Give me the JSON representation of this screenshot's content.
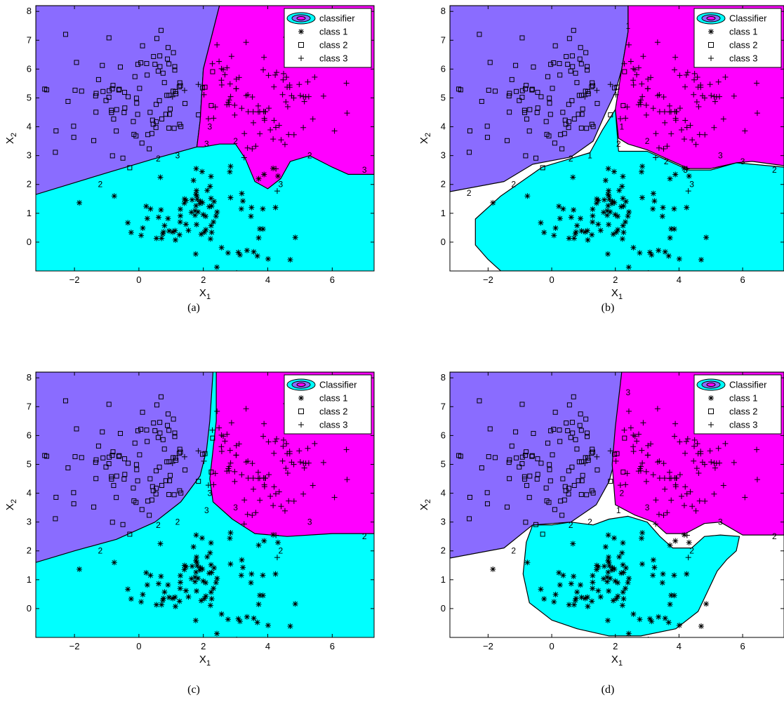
{
  "colors": {
    "class1_region": "#00ffff",
    "class2_region": "#8a6cff",
    "class3_region": "#ff00ff",
    "unclassified": "#ffffff",
    "markers": "#000000"
  },
  "chart_data": [
    {
      "type": "scatter",
      "caption": "(a)",
      "xlabel": "X_1",
      "ylabel": "X_2",
      "xlim": [
        -3.2,
        7.3
      ],
      "ylim": [
        -1,
        8.2
      ],
      "xticks": [
        -2,
        0,
        2,
        4,
        6
      ],
      "yticks": [
        0,
        1,
        2,
        3,
        4,
        5,
        6,
        7,
        8
      ],
      "legend": {
        "position": "top-right",
        "entries": [
          "classifier",
          "class 1",
          "class 2",
          "class 3"
        ]
      },
      "regions": "classifier decision regions: class 2 upper-left, class 3 upper-right, class 1 bottom",
      "contour_labels": [
        "2",
        "2",
        "3",
        "3",
        "2",
        "3",
        "2",
        "3",
        "3"
      ],
      "series": [
        {
          "name": "class 1",
          "marker": "*",
          "center": [
            2.0,
            1.0
          ],
          "spread": [
            1.1,
            1.0
          ],
          "n": 100
        },
        {
          "name": "class 2",
          "marker": "square",
          "center": [
            0.0,
            5.0
          ],
          "spread": [
            1.2,
            1.0
          ],
          "n": 100
        },
        {
          "name": "class 3",
          "marker": "+",
          "center": [
            4.0,
            5.0
          ],
          "spread": [
            1.1,
            1.0
          ],
          "n": 100
        }
      ]
    },
    {
      "type": "scatter",
      "caption": "(b)",
      "xlabel": "X_1",
      "ylabel": "X_2",
      "xlim": [
        -3.2,
        7.3
      ],
      "ylim": [
        -1,
        8.2
      ],
      "xticks": [
        -2,
        0,
        2,
        4,
        6
      ],
      "yticks": [
        0,
        1,
        2,
        3,
        4,
        5,
        6,
        7,
        8
      ],
      "legend": {
        "position": "top-right",
        "entries": [
          "Classifier",
          "class 1",
          "class 2",
          "class 3"
        ]
      },
      "regions": "regions with unclassified white gaps between classes",
      "contour_labels": [
        "2",
        "2",
        "1",
        "2",
        "2",
        "3",
        "3",
        "2",
        "1",
        "1",
        "2",
        "2",
        "3",
        "3"
      ],
      "series": [
        {
          "name": "class 1",
          "marker": "*",
          "center": [
            2.0,
            1.0
          ],
          "spread": [
            1.1,
            1.0
          ],
          "n": 100
        },
        {
          "name": "class 2",
          "marker": "square",
          "center": [
            0.0,
            5.0
          ],
          "spread": [
            1.2,
            1.0
          ],
          "n": 100
        },
        {
          "name": "class 3",
          "marker": "+",
          "center": [
            4.0,
            5.0
          ],
          "spread": [
            1.1,
            1.0
          ],
          "n": 100
        }
      ]
    },
    {
      "type": "scatter",
      "caption": "(c)",
      "xlabel": "X_1",
      "ylabel": "X_2",
      "xlim": [
        -3.2,
        7.3
      ],
      "ylim": [
        -1,
        8.2
      ],
      "xticks": [
        -2,
        0,
        2,
        4,
        6
      ],
      "yticks": [
        0,
        1,
        2,
        3,
        4,
        5,
        6,
        7,
        8
      ],
      "legend": {
        "position": "top-right",
        "entries": [
          "Classifier",
          "class 1",
          "class 2",
          "class 3"
        ]
      },
      "regions": "smooth decision regions: class 2 upper-left, class 3 upper-right, class 1 bottom",
      "contour_labels": [
        "2",
        "2",
        "2",
        "3",
        "3",
        "2",
        "3",
        "2",
        "3"
      ],
      "series": [
        {
          "name": "class 1",
          "marker": "*",
          "center": [
            2.0,
            1.0
          ],
          "spread": [
            1.1,
            1.0
          ],
          "n": 100
        },
        {
          "name": "class 2",
          "marker": "square",
          "center": [
            0.0,
            5.0
          ],
          "spread": [
            1.2,
            1.0
          ],
          "n": 100
        },
        {
          "name": "class 3",
          "marker": "+",
          "center": [
            4.0,
            5.0
          ],
          "spread": [
            1.1,
            1.0
          ],
          "n": 100
        }
      ]
    },
    {
      "type": "scatter",
      "caption": "(d)",
      "xlabel": "X_1",
      "ylabel": "X_2",
      "xlim": [
        -3.2,
        7.3
      ],
      "ylim": [
        -1,
        8.2
      ],
      "xticks": [
        -2,
        0,
        2,
        4,
        6
      ],
      "yticks": [
        0,
        1,
        2,
        3,
        4,
        5,
        6,
        7,
        8
      ],
      "legend": {
        "position": "top-right",
        "entries": [
          "Classifier",
          "class 1",
          "class 2",
          "class 3"
        ]
      },
      "regions": "class 1 region enclosed as a blob, white unclassified space around it",
      "contour_labels": [
        "2",
        "2",
        "2",
        "1",
        "3",
        "2",
        "3",
        "2",
        "2",
        "3"
      ],
      "series": [
        {
          "name": "class 1",
          "marker": "*",
          "center": [
            2.0,
            1.0
          ],
          "spread": [
            1.1,
            1.0
          ],
          "n": 100
        },
        {
          "name": "class 2",
          "marker": "square",
          "center": [
            0.0,
            5.0
          ],
          "spread": [
            1.2,
            1.0
          ],
          "n": 100
        },
        {
          "name": "class 3",
          "marker": "+",
          "center": [
            4.0,
            5.0
          ],
          "spread": [
            1.1,
            1.0
          ],
          "n": 100
        }
      ]
    }
  ]
}
